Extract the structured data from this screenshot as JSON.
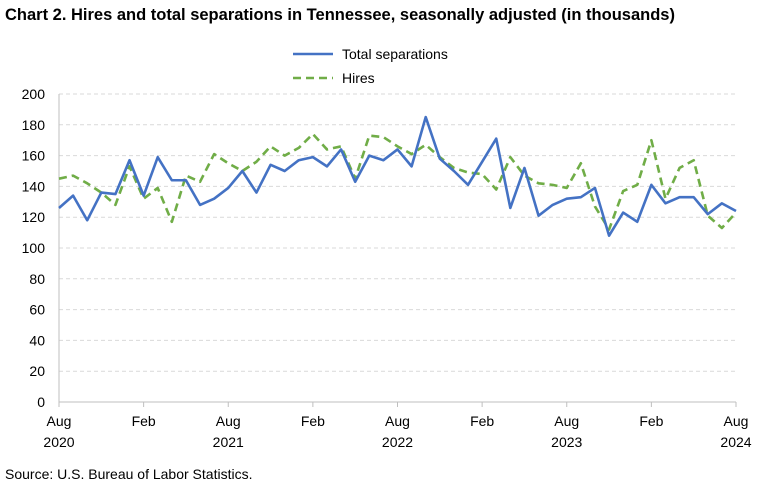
{
  "title": "Chart 2. Hires and total separations in Tennessee, seasonally adjusted (in thousands)",
  "source": "Source: U.S. Bureau of Labor Statistics.",
  "chart_data": {
    "type": "line",
    "title": "Chart 2. Hires and total separations in Tennessee, seasonally adjusted (in thousands)",
    "xlabel": "",
    "ylabel": "",
    "ylim": [
      0,
      200
    ],
    "yticks": [
      0,
      20,
      40,
      60,
      80,
      100,
      120,
      140,
      160,
      180,
      200
    ],
    "grid": true,
    "legend_position": "top-center",
    "x_start": "Aug 2020",
    "x_end": "Aug 2024",
    "x_tick_labels": [
      {
        "month": "Aug",
        "year": "2020"
      },
      {
        "month": "Feb",
        "year": ""
      },
      {
        "month": "Aug",
        "year": "2021"
      },
      {
        "month": "Feb",
        "year": ""
      },
      {
        "month": "Aug",
        "year": "2022"
      },
      {
        "month": "Feb",
        "year": ""
      },
      {
        "month": "Aug",
        "year": "2023"
      },
      {
        "month": "Feb",
        "year": ""
      },
      {
        "month": "Aug",
        "year": "2024"
      }
    ],
    "series": [
      {
        "name": "Total separations",
        "color": "#4472c4",
        "style": "solid",
        "values": [
          126,
          134,
          118,
          136,
          135,
          157,
          134,
          159,
          144,
          144,
          128,
          132,
          139,
          150,
          136,
          154,
          150,
          157,
          159,
          153,
          164,
          143,
          160,
          157,
          164,
          153,
          185,
          158,
          150,
          141,
          156,
          171,
          126,
          152,
          121,
          128,
          132,
          133,
          139,
          108,
          123,
          117,
          141,
          129,
          133,
          133,
          122,
          129,
          124
        ]
      },
      {
        "name": "Hires",
        "color": "#70ad47",
        "style": "dashed",
        "values": [
          145,
          147,
          142,
          136,
          128,
          153,
          132,
          139,
          117,
          147,
          143,
          161,
          155,
          150,
          156,
          166,
          160,
          165,
          174,
          164,
          166,
          145,
          173,
          172,
          166,
          161,
          167,
          159,
          152,
          149,
          148,
          138,
          159,
          147,
          142,
          141,
          139,
          155,
          127,
          112,
          137,
          141,
          170,
          132,
          152,
          157,
          121,
          113,
          123
        ]
      }
    ]
  }
}
